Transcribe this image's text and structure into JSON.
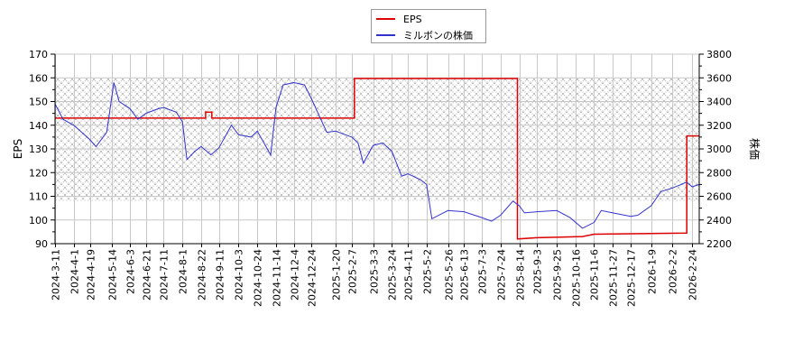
{
  "chart_data": {
    "type": "line",
    "title": "",
    "xlabel": "",
    "ylabel": "EPS",
    "ylabel_right": "株価",
    "ylim": [
      90,
      170
    ],
    "ylim_right": [
      2200,
      3800
    ],
    "grid": true,
    "legend_position": "top-center",
    "y_ticks": [
      90,
      100,
      110,
      120,
      130,
      140,
      150,
      160,
      170
    ],
    "y_ticks_right": [
      2200,
      2400,
      2600,
      2800,
      3000,
      3200,
      3400,
      3600,
      3800
    ],
    "x_tick_labels": [
      "2024-3-11",
      "2024-4-1",
      "2024-4-19",
      "2024-5-14",
      "2024-6-3",
      "2024-6-21",
      "2024-7-11",
      "2024-8-1",
      "2024-8-22",
      "2024-9-11",
      "2024-10-3",
      "2024-10-24",
      "2024-11-14",
      "2024-12-4",
      "2024-12-24",
      "2025-1-20",
      "2025-2-7",
      "2025-3-3",
      "2025-3-24",
      "2025-4-11",
      "2025-5-2",
      "2025-5-26",
      "2025-6-13",
      "2025-7-3",
      "2025-7-24",
      "2025-8-14",
      "2025-9-3",
      "2025-9-25",
      "2025-10-16",
      "2025-11-6",
      "2025-11-27",
      "2025-12-17",
      "2026-1-9",
      "2026-2-2",
      "2026-2-24"
    ],
    "hatched_band": {
      "eps_from": 108,
      "eps_to": 160
    },
    "series": [
      {
        "name": "EPS",
        "axis": "left",
        "color": "#dd0000",
        "step": true,
        "points": [
          [
            "2024-3-11",
            143.0
          ],
          [
            "2024-8-27",
            143.0
          ],
          [
            "2024-8-27",
            145.5
          ],
          [
            "2024-9-3",
            145.5
          ],
          [
            "2024-9-3",
            143.0
          ],
          [
            "2025-2-10",
            143.0
          ],
          [
            "2025-2-10",
            159.7
          ],
          [
            "2025-8-12",
            159.7
          ],
          [
            "2025-8-12",
            92.0
          ],
          [
            "2025-9-3",
            92.5
          ],
          [
            "2025-10-24",
            93.0
          ],
          [
            "2025-11-6",
            94.0
          ],
          [
            "2026-2-18",
            94.5
          ],
          [
            "2026-2-18",
            135.5
          ],
          [
            "2026-3-4",
            135.5
          ]
        ]
      },
      {
        "name": "ミルボンの株価",
        "axis": "right",
        "color": "#3333cc",
        "points": [
          [
            "2024-3-11",
            3380
          ],
          [
            "2024-3-20",
            3250
          ],
          [
            "2024-4-1",
            3200
          ],
          [
            "2024-4-19",
            3080
          ],
          [
            "2024-4-26",
            3020
          ],
          [
            "2024-5-8",
            3140
          ],
          [
            "2024-5-16",
            3560
          ],
          [
            "2024-5-22",
            3400
          ],
          [
            "2024-6-3",
            3340
          ],
          [
            "2024-6-12",
            3250
          ],
          [
            "2024-6-21",
            3300
          ],
          [
            "2024-7-5",
            3340
          ],
          [
            "2024-7-11",
            3350
          ],
          [
            "2024-7-25",
            3310
          ],
          [
            "2024-8-1",
            3230
          ],
          [
            "2024-8-6",
            2910
          ],
          [
            "2024-8-15",
            2980
          ],
          [
            "2024-8-22",
            3020
          ],
          [
            "2024-9-2",
            2950
          ],
          [
            "2024-9-11",
            3010
          ],
          [
            "2024-9-25",
            3200
          ],
          [
            "2024-10-3",
            3120
          ],
          [
            "2024-10-17",
            3100
          ],
          [
            "2024-10-24",
            3150
          ],
          [
            "2024-11-8",
            2950
          ],
          [
            "2024-11-14",
            3350
          ],
          [
            "2024-11-22",
            3540
          ],
          [
            "2024-12-4",
            3560
          ],
          [
            "2024-12-16",
            3540
          ],
          [
            "2024-12-24",
            3420
          ],
          [
            "2025-1-10",
            3140
          ],
          [
            "2025-1-20",
            3150
          ],
          [
            "2025-2-7",
            3100
          ],
          [
            "2025-2-14",
            3050
          ],
          [
            "2025-2-20",
            2880
          ],
          [
            "2025-3-3",
            3030
          ],
          [
            "2025-3-14",
            3050
          ],
          [
            "2025-3-24",
            2980
          ],
          [
            "2025-4-4",
            2770
          ],
          [
            "2025-4-11",
            2790
          ],
          [
            "2025-4-25",
            2740
          ],
          [
            "2025-5-2",
            2700
          ],
          [
            "2025-5-8",
            2410
          ],
          [
            "2025-5-26",
            2480
          ],
          [
            "2025-6-13",
            2470
          ],
          [
            "2025-7-3",
            2420
          ],
          [
            "2025-7-14",
            2390
          ],
          [
            "2025-7-24",
            2440
          ],
          [
            "2025-8-7",
            2560
          ],
          [
            "2025-8-14",
            2520
          ],
          [
            "2025-8-20",
            2460
          ],
          [
            "2025-9-3",
            2470
          ],
          [
            "2025-9-25",
            2480
          ],
          [
            "2025-10-10",
            2420
          ],
          [
            "2025-10-24",
            2330
          ],
          [
            "2025-11-6",
            2380
          ],
          [
            "2025-11-14",
            2480
          ],
          [
            "2025-11-27",
            2460
          ],
          [
            "2025-12-17",
            2430
          ],
          [
            "2025-12-25",
            2440
          ],
          [
            "2026-1-9",
            2520
          ],
          [
            "2026-1-20",
            2640
          ],
          [
            "2026-2-2",
            2670
          ],
          [
            "2026-2-18",
            2720
          ],
          [
            "2026-2-24",
            2680
          ],
          [
            "2026-3-4",
            2700
          ]
        ]
      }
    ]
  },
  "legend": {
    "items": [
      {
        "label": "EPS",
        "color": "#dd0000"
      },
      {
        "label": "ミルボンの株価",
        "color": "#3333cc"
      }
    ]
  },
  "axes": {
    "left_label": "EPS",
    "right_label": "株価"
  }
}
